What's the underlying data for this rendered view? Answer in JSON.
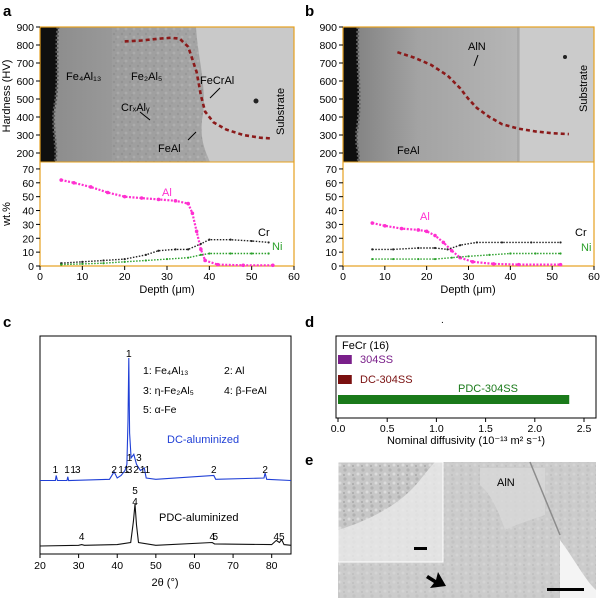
{
  "panel_labels": [
    "a",
    "b",
    "c",
    "d",
    "e"
  ],
  "colors": {
    "frame": "#e6a11e",
    "hardness": "#8b1a1a",
    "al": "#ff2fd0",
    "cr": "#222222",
    "ni": "#2aa02a",
    "xrd_dc": "#1f3fd6",
    "xrd_pdc": "#111111",
    "bar_304ss": "#7a1f8a",
    "bar_dc": "#7a1010",
    "bar_pdc": "#1a7a1a"
  },
  "panel_a": {
    "hardness_ylabel": "Hardness (HV)",
    "wt_ylabel": "wt.%",
    "xlabel": "Depth (μm)",
    "phase_labels": {
      "fe4al13": "Fe₄Al₁₃",
      "fe2al5": "Fe₂Al₅",
      "fecral": "FeCrAl",
      "crxaly": "CrₓAlᵧ",
      "feal": "FeAl",
      "substrate": "Substrate"
    },
    "series_labels": {
      "al": "Al",
      "cr": "Cr",
      "ni": "Ni"
    }
  },
  "panel_b": {
    "xlabel": "Depth (μm)",
    "phase_labels": {
      "aln": "AlN",
      "feal": "FeAl",
      "substrate": "Substrate"
    },
    "series_labels": {
      "al": "Al",
      "cr": "Cr",
      "ni": "Ni"
    }
  },
  "panel_c": {
    "xlabel": "2θ (°)",
    "legend": [
      "1: Fe₄Al₁₃",
      "2: Al",
      "3: η-Fe₂Al₅",
      "4: β-FeAl",
      "5: α-Fe"
    ],
    "dc_label": "DC-aluminized",
    "pdc_label": "PDC-aluminized",
    "dc_peak_labels": [
      {
        "x": 24,
        "t": "1"
      },
      {
        "x": 27,
        "t": "1"
      },
      {
        "x": 28.6,
        "t": "1"
      },
      {
        "x": 29.8,
        "t": "3"
      },
      {
        "x": 39.2,
        "t": "2"
      },
      {
        "x": 41,
        "t": "1"
      },
      {
        "x": 42.4,
        "t": "1"
      },
      {
        "x": 43.2,
        "t": "3"
      },
      {
        "x": 43.2,
        "t": "1"
      },
      {
        "x": 44.9,
        "t": "2"
      },
      {
        "x": 45.6,
        "t": "3"
      },
      {
        "x": 46.6,
        "t": "1"
      },
      {
        "x": 47.8,
        "t": "1"
      },
      {
        "x": 65,
        "t": "2"
      },
      {
        "x": 78.3,
        "t": "2"
      }
    ],
    "pdc_peak_labels": [
      {
        "x": 30.8,
        "t": "4"
      },
      {
        "x": 44.6,
        "t": "5"
      },
      {
        "x": 44.6,
        "t": "4"
      },
      {
        "x": 64.6,
        "t": "4"
      },
      {
        "x": 65.4,
        "t": "5"
      },
      {
        "x": 81.2,
        "t": "4"
      },
      {
        "x": 82.6,
        "t": "5"
      }
    ]
  },
  "panel_d": {
    "xlabel": "Nominal diffusivity (10⁻¹³ m² s⁻¹)"
  },
  "panel_e": {
    "aln_label": "AlN"
  },
  "chart_data": [
    {
      "panel": "a",
      "type": "line",
      "title": "",
      "xlabel": "",
      "ylabel": "Hardness (HV)",
      "xlim": [
        0,
        60
      ],
      "ylim": [
        150,
        900
      ],
      "yticks": [
        200,
        300,
        400,
        500,
        600,
        700,
        800,
        900
      ],
      "series": [
        {
          "values": [
            [
              20,
              820
            ],
            [
              24,
              825
            ],
            [
              28,
              835
            ],
            [
              31,
              840
            ],
            [
              33,
              835
            ],
            [
              35,
              790
            ],
            [
              37,
              650
            ],
            [
              38,
              520
            ],
            [
              39,
              430
            ],
            [
              41,
              370
            ],
            [
              44,
              330
            ],
            [
              48,
              300
            ],
            [
              52,
              285
            ],
            [
              55,
              280
            ]
          ]
        }
      ]
    },
    {
      "panel": "a",
      "type": "line",
      "title": "",
      "xlabel": "Depth (μm)",
      "ylabel": "wt.%",
      "xlim": [
        0,
        60
      ],
      "ylim": [
        0,
        75
      ],
      "xticks": [
        0,
        10,
        20,
        30,
        40,
        50,
        60
      ],
      "yticks": [
        0,
        10,
        20,
        30,
        40,
        50,
        60,
        70
      ],
      "series": [
        {
          "name": "Al",
          "values": [
            [
              5,
              62
            ],
            [
              8,
              60
            ],
            [
              12,
              57
            ],
            [
              16,
              53
            ],
            [
              20,
              50
            ],
            [
              24,
              49
            ],
            [
              28,
              48
            ],
            [
              32,
              47
            ],
            [
              35,
              45
            ],
            [
              36,
              38
            ],
            [
              37,
              25
            ],
            [
              38,
              12
            ],
            [
              39,
              4
            ],
            [
              42,
              1
            ],
            [
              48,
              0.5
            ],
            [
              55,
              0.5
            ]
          ]
        },
        {
          "name": "Cr",
          "values": [
            [
              5,
              2
            ],
            [
              10,
              3
            ],
            [
              15,
              4
            ],
            [
              20,
              5
            ],
            [
              25,
              8
            ],
            [
              28,
              11
            ],
            [
              32,
              12
            ],
            [
              35,
              12
            ],
            [
              38,
              16
            ],
            [
              40,
              19
            ],
            [
              45,
              19
            ],
            [
              50,
              18
            ],
            [
              54,
              17
            ]
          ]
        },
        {
          "name": "Ni",
          "values": [
            [
              5,
              1
            ],
            [
              10,
              1.5
            ],
            [
              15,
              2
            ],
            [
              20,
              3
            ],
            [
              25,
              4
            ],
            [
              30,
              5
            ],
            [
              35,
              6
            ],
            [
              38,
              8
            ],
            [
              40,
              9
            ],
            [
              45,
              9
            ],
            [
              50,
              9
            ],
            [
              54,
              9
            ]
          ]
        }
      ]
    },
    {
      "panel": "b",
      "type": "line",
      "title": "",
      "xlabel": "",
      "ylabel": "",
      "xlim": [
        0,
        60
      ],
      "ylim": [
        150,
        900
      ],
      "yticks": [
        200,
        300,
        400,
        500,
        600,
        700,
        800,
        900
      ],
      "series": [
        {
          "values": [
            [
              13,
              760
            ],
            [
              17,
              730
            ],
            [
              21,
              690
            ],
            [
              25,
              630
            ],
            [
              28,
              560
            ],
            [
              30,
              500
            ],
            [
              32,
              450
            ],
            [
              35,
              400
            ],
            [
              38,
              360
            ],
            [
              42,
              335
            ],
            [
              46,
              320
            ],
            [
              50,
              310
            ],
            [
              54,
              305
            ]
          ]
        }
      ]
    },
    {
      "panel": "b",
      "type": "line",
      "title": "",
      "xlabel": "Depth (μm)",
      "ylabel": "",
      "xlim": [
        0,
        60
      ],
      "ylim": [
        0,
        75
      ],
      "xticks": [
        0,
        10,
        20,
        30,
        40,
        50,
        60
      ],
      "yticks": [
        0,
        10,
        20,
        30,
        40,
        50,
        60,
        70
      ],
      "series": [
        {
          "name": "Al",
          "values": [
            [
              7,
              31
            ],
            [
              10,
              29
            ],
            [
              14,
              27
            ],
            [
              18,
              26
            ],
            [
              20,
              25
            ],
            [
              22,
              22
            ],
            [
              24,
              17
            ],
            [
              26,
              11
            ],
            [
              28,
              6
            ],
            [
              31,
              3
            ],
            [
              36,
              1.5
            ],
            [
              42,
              1
            ],
            [
              52,
              1
            ]
          ]
        },
        {
          "name": "Cr",
          "values": [
            [
              7,
              12
            ],
            [
              12,
              12
            ],
            [
              18,
              13
            ],
            [
              22,
              13
            ],
            [
              25,
              12
            ],
            [
              28,
              15
            ],
            [
              32,
              17
            ],
            [
              38,
              17
            ],
            [
              45,
              17
            ],
            [
              52,
              17
            ]
          ]
        },
        {
          "name": "Ni",
          "values": [
            [
              7,
              5
            ],
            [
              12,
              5
            ],
            [
              18,
              5
            ],
            [
              22,
              5
            ],
            [
              26,
              6
            ],
            [
              30,
              7
            ],
            [
              35,
              8
            ],
            [
              40,
              9
            ],
            [
              46,
              9
            ],
            [
              52,
              9
            ]
          ]
        }
      ]
    },
    {
      "panel": "c",
      "type": "line",
      "title": "",
      "xlabel": "2θ (°)",
      "ylabel": "",
      "xlim": [
        20,
        85
      ],
      "xticks": [
        20,
        30,
        40,
        50,
        60,
        70,
        80
      ],
      "series": [
        {
          "name": "DC-aluminized",
          "values": [
            [
              20,
              0.02
            ],
            [
              24,
              0.02
            ],
            [
              24.2,
              0.06
            ],
            [
              24.5,
              0.02
            ],
            [
              27,
              0.02
            ],
            [
              27.2,
              0.05
            ],
            [
              27.4,
              0.02
            ],
            [
              38,
              0.03
            ],
            [
              39.2,
              0.09
            ],
            [
              40,
              0.04
            ],
            [
              41,
              0.06
            ],
            [
              42,
              0.1
            ],
            [
              42.5,
              0.15
            ],
            [
              42.8,
              0.5
            ],
            [
              43.0,
              1.0
            ],
            [
              43.2,
              0.4
            ],
            [
              43.6,
              0.2
            ],
            [
              44.3,
              0.23
            ],
            [
              45,
              0.15
            ],
            [
              46,
              0.1
            ],
            [
              47,
              0.12
            ],
            [
              47.5,
              0.04
            ],
            [
              50,
              0.03
            ],
            [
              65,
              0.06
            ],
            [
              65.5,
              0.03
            ],
            [
              78,
              0.04
            ],
            [
              78.3,
              0.08
            ],
            [
              78.7,
              0.03
            ],
            [
              85,
              0.02
            ]
          ]
        },
        {
          "name": "PDC-aluminized",
          "values": [
            [
              20,
              0.0
            ],
            [
              30,
              0.01
            ],
            [
              30.8,
              0.02
            ],
            [
              31.5,
              0.01
            ],
            [
              40,
              0.02
            ],
            [
              43.5,
              0.05
            ],
            [
              44.2,
              0.35
            ],
            [
              44.6,
              0.6
            ],
            [
              45,
              0.3
            ],
            [
              45.5,
              0.05
            ],
            [
              50,
              0.01
            ],
            [
              64.6,
              0.05
            ],
            [
              65.2,
              0.03
            ],
            [
              80,
              0.02
            ],
            [
              81.2,
              0.08
            ],
            [
              82,
              0.05
            ],
            [
              82.6,
              0.09
            ],
            [
              83.2,
              0.02
            ],
            [
              85,
              0.01
            ]
          ]
        }
      ]
    },
    {
      "panel": "d",
      "type": "bar",
      "title": "",
      "xlabel": "Nominal diffusivity (10⁻¹³ m² s⁻¹)",
      "ylabel": "",
      "xlim": [
        0,
        2.5
      ],
      "xticks": [
        0.0,
        0.5,
        1.0,
        1.5,
        2.0,
        2.5
      ],
      "categories": [
        "FeCr (16)",
        "304SS",
        "DC-304SS",
        "PDC-304SS"
      ],
      "values": [
        0.0,
        0.14,
        0.14,
        2.35
      ]
    }
  ]
}
